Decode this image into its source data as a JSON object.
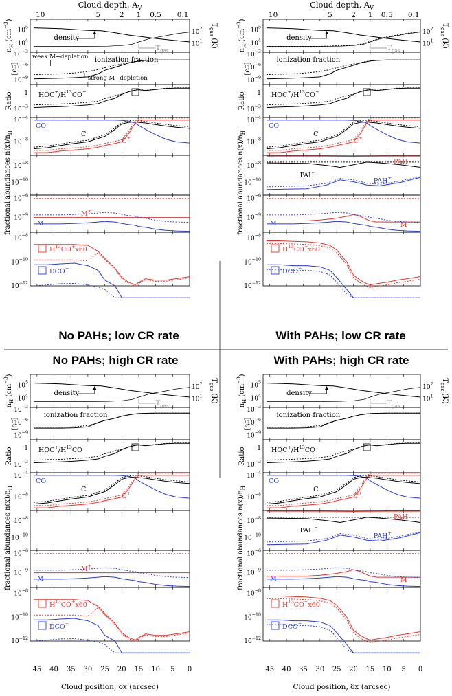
{
  "figure": {
    "top_axis_title": "Cloud depth, A",
    "top_axis_title_sub": "V",
    "top_ticks": [
      "10",
      "5",
      "2",
      "1",
      "0.5",
      "0.1"
    ],
    "bottom_axis_title": "Cloud position, δx (arcsec)",
    "bottom_ticks": [
      "45",
      "40",
      "35",
      "30",
      "25",
      "20",
      "15",
      "10",
      "5",
      "0"
    ],
    "panel_titles": [
      "No PAHs;  low CR rate",
      "With PAHs;  low CR rate",
      "No PAHs; high CR rate",
      "With PAHs; high CR rate"
    ],
    "ylabels": {
      "density_main": "n",
      "density_sub": "H",
      "density_unit": " (cm",
      "density_exp": "−3",
      "density_close": ")",
      "electrons": "[e⁻]",
      "ratio": "Ratio",
      "fractional": "fractional abundances  n(x)/n",
      "fractional_sub": "H",
      "tgas_main": "T",
      "tgas_sub": "gas",
      "tgas_unit": " (K)"
    },
    "labels": {
      "density": "density",
      "tgas": "T",
      "tgas_sub": "gas",
      "ionization_fraction": "ionization fraction",
      "weak_depletion": "weak M−depletion",
      "strong_depletion": "strong M−depletion",
      "hoc_ratio": "HOC",
      "hoc_ratio_tail": "/H",
      "hoc_ratio_13": "13",
      "hoc_ratio_end": "CO",
      "co": "CO",
      "c": "C",
      "cplus": "C",
      "pah": "PAH",
      "pah_minus": "PAH",
      "pah_plus": "PAH",
      "mplus": "M",
      "m": "M",
      "h13co_a": "H",
      "h13co_b": "13",
      "h13co_c": "CO",
      "h13co_d": "x60",
      "dco": "DCO"
    },
    "colors": {
      "black": "#000000",
      "red": "#e8322b",
      "blue": "#2c39d6",
      "gray": "#888888"
    }
  },
  "chart_data": [
    {
      "type": "line",
      "title": "No PAHs;  low CR rate",
      "xlabel": "Cloud position, δx (arcsec)",
      "xlim": [
        47,
        0
      ],
      "series": [
        {
          "name": "density",
          "x": [
            46,
            30,
            20,
            15,
            10,
            5,
            0
          ],
          "values": [
            120000.0,
            80000.0,
            60000.0,
            40000.0,
            25000.0,
            18000.0,
            12000.0
          ]
        },
        {
          "name": "ionization fraction (weak M-depletion)",
          "x": [
            46,
            35,
            30,
            22,
            18,
            15,
            5,
            0
          ],
          "values": [
            2e-08,
            4e-08,
            1e-07,
            5e-06,
            2e-05,
            4e-05,
            5e-05,
            5e-05
          ]
        },
        {
          "name": "ionization fraction (strong M-depletion)",
          "x": [
            46,
            35,
            30,
            27,
            22,
            18,
            15,
            5,
            0
          ],
          "values": [
            2e-09,
            3e-09,
            5e-09,
            8e-08,
            3e-06,
            2e-05,
            4e-05,
            5e-05,
            5e-05
          ]
        },
        {
          "name": "HOC+/H13CO+",
          "x": [
            46,
            30,
            22,
            18,
            15,
            12,
            5,
            0
          ],
          "values": [
            0.002,
            0.005,
            0.05,
            0.8,
            4,
            3,
            5,
            6
          ]
        },
        {
          "name": "H13CO+x60",
          "x": [
            46,
            30,
            25,
            20,
            17,
            15,
            12,
            5,
            0
          ],
          "values": [
            3e-09,
            3e-09,
            1e-09,
            3e-11,
            2e-12,
            1.2e-12,
            4e-12,
            5e-12,
            6e-12
          ]
        },
        {
          "name": "DCO+",
          "x": [
            46,
            35,
            30,
            25,
            20,
            16,
            15
          ],
          "values": [
            6e-11,
            8e-11,
            5e-11,
            1e-11,
            1e-12,
            1e-13,
            1e-13
          ]
        }
      ]
    },
    {
      "type": "line",
      "title": "With PAHs;  low CR rate",
      "xlabel": "Cloud position, δx (arcsec)",
      "xlim": [
        47,
        0
      ],
      "series": [
        {
          "name": "PAH",
          "x": [
            46,
            0
          ],
          "values": [
            1e-07,
            1e-07
          ]
        },
        {
          "name": "PAH−",
          "x": [
            46,
            30,
            20,
            15,
            5,
            0
          ],
          "values": [
            2e-08,
            1.5e-08,
            5e-09,
            2e-08,
            1e-08,
            5e-09
          ]
        },
        {
          "name": "PAH+",
          "x": [
            46,
            30,
            20,
            10,
            0
          ],
          "values": [
            2e-11,
            5e-11,
            3e-10,
            5e-11,
            1e-09
          ]
        },
        {
          "name": "H13CO+x60",
          "x": [
            46,
            30,
            25,
            20,
            17,
            15,
            12
          ],
          "values": [
            5e-09,
            4e-09,
            2e-09,
            2e-10,
            5e-12,
            1e-12,
            1.5e-12
          ]
        },
        {
          "name": "DCO+",
          "x": [
            46,
            35,
            30,
            25,
            22,
            20
          ],
          "values": [
            5e-11,
            6e-11,
            3e-11,
            3e-12,
            5e-13,
            1e-13
          ]
        }
      ]
    }
  ]
}
